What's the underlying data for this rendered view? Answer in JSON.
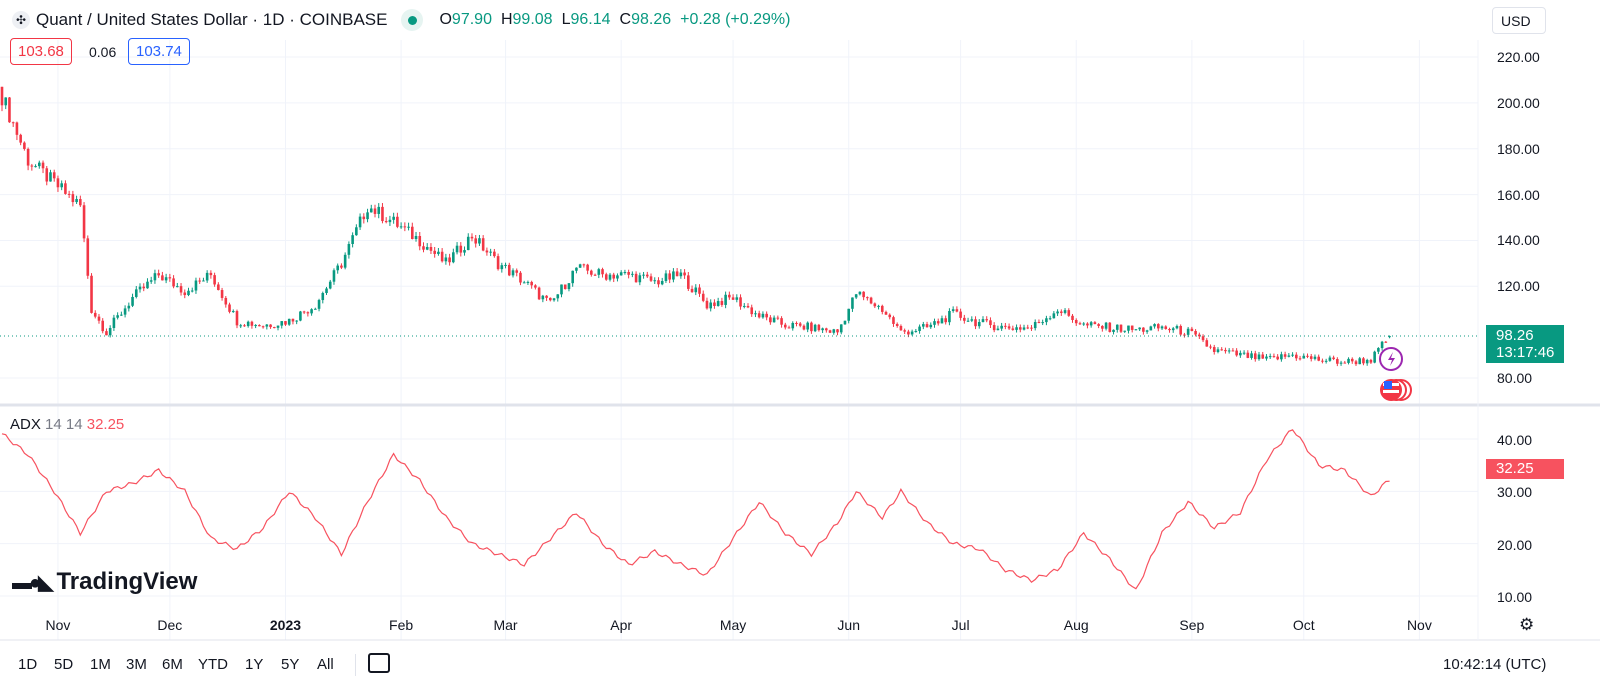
{
  "header": {
    "title": "Quant / United States Dollar · 1D · COINBASE",
    "open_label": "O",
    "open": "97.90",
    "high_label": "H",
    "high": "99.08",
    "low_label": "L",
    "low": "96.14",
    "close_label": "C",
    "close": "98.26",
    "change": "+0.28 (+0.29%)"
  },
  "bid": "103.68",
  "spread": "0.06",
  "ask": "103.74",
  "currency": "USD",
  "last_price": {
    "value": "98.26",
    "countdown": "13:17:46"
  },
  "indicator": {
    "name": "ADX",
    "p1": "14",
    "p2": "14",
    "value": "32.25"
  },
  "logo": "TradingView",
  "bottom": {
    "ranges": [
      "1D",
      "5D",
      "1M",
      "3M",
      "6M",
      "YTD",
      "1Y",
      "5Y",
      "All"
    ],
    "time": "10:42:14 (UTC)"
  },
  "colors": {
    "up": "#089981",
    "down": "#f23645",
    "adx": "#f7525f"
  },
  "chart_data": [
    {
      "type": "candlestick",
      "title": "Quant / United States Dollar · 1D · COINBASE",
      "ylim": [
        66,
        225
      ],
      "y_ticks": [
        "220.00",
        "200.00",
        "180.00",
        "160.00",
        "140.00",
        "120.00",
        "80.00"
      ],
      "x_ticks": [
        "Nov",
        "Dec",
        "2023",
        "Feb",
        "Mar",
        "Apr",
        "May",
        "Jun",
        "Jul",
        "Aug",
        "Sep",
        "Oct",
        "Nov"
      ],
      "close_anchors": [
        [
          "2022-10-17",
          203
        ],
        [
          "2022-10-24",
          175
        ],
        [
          "2022-10-31",
          165
        ],
        [
          "2022-11-07",
          155
        ],
        [
          "2022-11-10",
          110
        ],
        [
          "2022-11-14",
          100
        ],
        [
          "2022-11-21",
          115
        ],
        [
          "2022-11-28",
          125
        ],
        [
          "2022-12-05",
          118
        ],
        [
          "2022-12-12",
          125
        ],
        [
          "2022-12-19",
          105
        ],
        [
          "2022-12-26",
          103
        ],
        [
          "2023-01-02",
          105
        ],
        [
          "2023-01-09",
          112
        ],
        [
          "2023-01-16",
          130
        ],
        [
          "2023-01-23",
          155
        ],
        [
          "2023-01-30",
          148
        ],
        [
          "2023-02-06",
          140
        ],
        [
          "2023-02-13",
          130
        ],
        [
          "2023-02-20",
          142
        ],
        [
          "2023-02-27",
          130
        ],
        [
          "2023-03-06",
          122
        ],
        [
          "2023-03-13",
          112
        ],
        [
          "2023-03-20",
          128
        ],
        [
          "2023-03-27",
          125
        ],
        [
          "2023-04-03",
          125
        ],
        [
          "2023-04-10",
          122
        ],
        [
          "2023-04-17",
          125
        ],
        [
          "2023-04-24",
          112
        ],
        [
          "2023-05-01",
          115
        ],
        [
          "2023-05-08",
          107
        ],
        [
          "2023-05-15",
          103
        ],
        [
          "2023-05-22",
          102
        ],
        [
          "2023-05-29",
          100
        ],
        [
          "2023-06-03",
          117
        ],
        [
          "2023-06-10",
          110
        ],
        [
          "2023-06-15",
          100
        ],
        [
          "2023-06-22",
          102
        ],
        [
          "2023-06-29",
          108
        ],
        [
          "2023-07-06",
          104
        ],
        [
          "2023-07-13",
          102
        ],
        [
          "2023-07-20",
          102
        ],
        [
          "2023-07-27",
          110
        ],
        [
          "2023-08-03",
          103
        ],
        [
          "2023-08-10",
          102
        ],
        [
          "2023-08-17",
          101
        ],
        [
          "2023-08-24",
          102
        ],
        [
          "2023-08-31",
          100
        ],
        [
          "2023-09-07",
          92
        ],
        [
          "2023-09-14",
          90
        ],
        [
          "2023-09-21",
          88
        ],
        [
          "2023-09-28",
          90
        ],
        [
          "2023-10-05",
          88
        ],
        [
          "2023-10-12",
          87
        ],
        [
          "2023-10-19",
          88
        ],
        [
          "2023-10-24",
          98.26
        ]
      ]
    },
    {
      "type": "line",
      "name": "ADX 14 14",
      "ylim": [
        7,
        45
      ],
      "y_ticks": [
        "40.00",
        "30.00",
        "20.00",
        "10.00"
      ],
      "values": [
        [
          "2022-10-17",
          41
        ],
        [
          "2022-10-24",
          37
        ],
        [
          "2022-10-31",
          30
        ],
        [
          "2022-11-07",
          22
        ],
        [
          "2022-11-14",
          30
        ],
        [
          "2022-11-21",
          31.5
        ],
        [
          "2022-11-28",
          34
        ],
        [
          "2022-12-05",
          30
        ],
        [
          "2022-12-12",
          21
        ],
        [
          "2022-12-19",
          19
        ],
        [
          "2022-12-26",
          23
        ],
        [
          "2023-01-02",
          30
        ],
        [
          "2023-01-09",
          25
        ],
        [
          "2023-01-16",
          18
        ],
        [
          "2023-01-23",
          28
        ],
        [
          "2023-01-30",
          37
        ],
        [
          "2023-02-06",
          32
        ],
        [
          "2023-02-13",
          25
        ],
        [
          "2023-02-20",
          20
        ],
        [
          "2023-02-27",
          18
        ],
        [
          "2023-03-06",
          16
        ],
        [
          "2023-03-13",
          21
        ],
        [
          "2023-03-20",
          26
        ],
        [
          "2023-03-27",
          20
        ],
        [
          "2023-04-03",
          16
        ],
        [
          "2023-04-10",
          18.5
        ],
        [
          "2023-04-17",
          16
        ],
        [
          "2023-04-24",
          14
        ],
        [
          "2023-05-01",
          21
        ],
        [
          "2023-05-08",
          28
        ],
        [
          "2023-05-15",
          22
        ],
        [
          "2023-05-22",
          18
        ],
        [
          "2023-05-29",
          24
        ],
        [
          "2023-06-03",
          30
        ],
        [
          "2023-06-10",
          25
        ],
        [
          "2023-06-15",
          30
        ],
        [
          "2023-06-22",
          24
        ],
        [
          "2023-06-29",
          20
        ],
        [
          "2023-07-06",
          19
        ],
        [
          "2023-07-13",
          15
        ],
        [
          "2023-07-20",
          13
        ],
        [
          "2023-07-27",
          15
        ],
        [
          "2023-08-03",
          22
        ],
        [
          "2023-08-10",
          17
        ],
        [
          "2023-08-17",
          11
        ],
        [
          "2023-08-24",
          22
        ],
        [
          "2023-08-31",
          28
        ],
        [
          "2023-09-07",
          23
        ],
        [
          "2023-09-14",
          26
        ],
        [
          "2023-09-21",
          36
        ],
        [
          "2023-09-28",
          42
        ],
        [
          "2023-10-05",
          35
        ],
        [
          "2023-10-12",
          34
        ],
        [
          "2023-10-19",
          29
        ],
        [
          "2023-10-24",
          32.25
        ]
      ]
    }
  ]
}
